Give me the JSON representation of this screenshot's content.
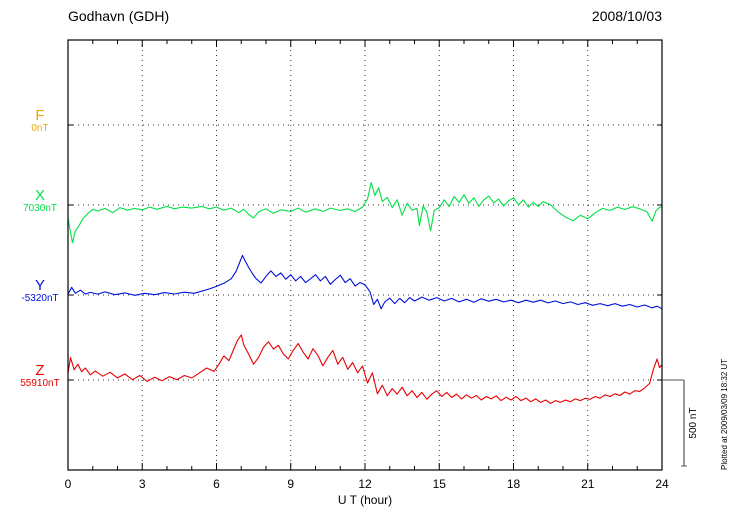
{
  "chart_data": {
    "type": "line",
    "title": "Godhavn (GDH)",
    "date": "2008/10/03",
    "xlabel": "U T (hour)",
    "x_range": [
      0,
      24
    ],
    "x_ticks": [
      0,
      3,
      6,
      9,
      12,
      15,
      18,
      21,
      24
    ],
    "grid": "dotted",
    "plotted_at": "Plotted at 2009/03/09 18:32 UT",
    "scale_bar": {
      "label": "500 nT",
      "nT": 500
    },
    "value_unit": "nT offset from component reference level",
    "series": [
      {
        "name": "F",
        "ref_label": "0nT",
        "baseline_nT": 0,
        "color": "#efa500",
        "points": []
      },
      {
        "name": "X",
        "ref_label": "7030nT",
        "baseline_nT": 7030,
        "color": "#00e047",
        "points": [
          [
            0,
            -75
          ],
          [
            0.1,
            -160
          ],
          [
            0.18,
            -220
          ],
          [
            0.3,
            -150
          ],
          [
            0.45,
            -120
          ],
          [
            0.6,
            -80
          ],
          [
            0.8,
            -50
          ],
          [
            1,
            -25
          ],
          [
            1.2,
            -35
          ],
          [
            1.5,
            -20
          ],
          [
            1.8,
            -45
          ],
          [
            2.1,
            -15
          ],
          [
            2.4,
            -30
          ],
          [
            2.7,
            -20
          ],
          [
            3,
            -28
          ],
          [
            3.3,
            -12
          ],
          [
            3.6,
            -25
          ],
          [
            4,
            -8
          ],
          [
            4.3,
            -22
          ],
          [
            4.6,
            -12
          ],
          [
            5,
            -18
          ],
          [
            5.4,
            -8
          ],
          [
            5.7,
            -22
          ],
          [
            6,
            -12
          ],
          [
            6.3,
            -30
          ],
          [
            6.6,
            -18
          ],
          [
            6.9,
            -45
          ],
          [
            7.1,
            -25
          ],
          [
            7.3,
            -55
          ],
          [
            7.5,
            -75
          ],
          [
            7.7,
            -40
          ],
          [
            8,
            -22
          ],
          [
            8.3,
            -48
          ],
          [
            8.6,
            -28
          ],
          [
            9,
            -38
          ],
          [
            9.3,
            -18
          ],
          [
            9.6,
            -42
          ],
          [
            10,
            -22
          ],
          [
            10.3,
            -38
          ],
          [
            10.6,
            -18
          ],
          [
            11,
            -32
          ],
          [
            11.3,
            -22
          ],
          [
            11.6,
            -38
          ],
          [
            11.9,
            -12
          ],
          [
            12.1,
            35
          ],
          [
            12.25,
            130
          ],
          [
            12.4,
            55
          ],
          [
            12.55,
            100
          ],
          [
            12.7,
            20
          ],
          [
            12.9,
            45
          ],
          [
            13.1,
            -15
          ],
          [
            13.3,
            30
          ],
          [
            13.5,
            -60
          ],
          [
            13.7,
            10
          ],
          [
            13.9,
            -30
          ],
          [
            14.1,
            -20
          ],
          [
            14.2,
            -120
          ],
          [
            14.35,
            -5
          ],
          [
            14.5,
            -45
          ],
          [
            14.65,
            -150
          ],
          [
            14.8,
            -30
          ],
          [
            15,
            -15
          ],
          [
            15.2,
            30
          ],
          [
            15.4,
            -10
          ],
          [
            15.6,
            50
          ],
          [
            15.8,
            15
          ],
          [
            16,
            60
          ],
          [
            16.2,
            10
          ],
          [
            16.4,
            42
          ],
          [
            16.6,
            -8
          ],
          [
            16.8,
            30
          ],
          [
            17,
            52
          ],
          [
            17.2,
            12
          ],
          [
            17.4,
            35
          ],
          [
            17.6,
            -5
          ],
          [
            17.8,
            25
          ],
          [
            18,
            42
          ],
          [
            18.2,
            2
          ],
          [
            18.4,
            30
          ],
          [
            18.6,
            -12
          ],
          [
            18.8,
            15
          ],
          [
            19,
            -8
          ],
          [
            19.2,
            20
          ],
          [
            19.5,
            2
          ],
          [
            19.8,
            -40
          ],
          [
            20.1,
            -70
          ],
          [
            20.4,
            -92
          ],
          [
            20.7,
            -60
          ],
          [
            21,
            -80
          ],
          [
            21.3,
            -45
          ],
          [
            21.6,
            -20
          ],
          [
            21.9,
            -32
          ],
          [
            22.2,
            -12
          ],
          [
            22.5,
            -26
          ],
          [
            22.8,
            -10
          ],
          [
            23.1,
            -22
          ],
          [
            23.4,
            -40
          ],
          [
            23.6,
            -95
          ],
          [
            23.75,
            -35
          ],
          [
            23.9,
            -15
          ],
          [
            24,
            -8
          ]
        ]
      },
      {
        "name": "Y",
        "ref_label": "-5320nT",
        "baseline_nT": -5320,
        "color": "#0010dd",
        "points": [
          [
            0,
            5
          ],
          [
            0.15,
            45
          ],
          [
            0.3,
            10
          ],
          [
            0.5,
            28
          ],
          [
            0.7,
            5
          ],
          [
            0.9,
            15
          ],
          [
            1.2,
            5
          ],
          [
            1.5,
            18
          ],
          [
            1.9,
            2
          ],
          [
            2.3,
            12
          ],
          [
            2.7,
            -2
          ],
          [
            3.1,
            10
          ],
          [
            3.5,
            2
          ],
          [
            3.9,
            14
          ],
          [
            4.3,
            6
          ],
          [
            4.7,
            16
          ],
          [
            5.1,
            10
          ],
          [
            5.4,
            22
          ],
          [
            5.7,
            35
          ],
          [
            6,
            50
          ],
          [
            6.3,
            68
          ],
          [
            6.6,
            95
          ],
          [
            6.8,
            140
          ],
          [
            6.95,
            195
          ],
          [
            7.05,
            230
          ],
          [
            7.15,
            200
          ],
          [
            7.3,
            160
          ],
          [
            7.45,
            125
          ],
          [
            7.6,
            95
          ],
          [
            7.8,
            70
          ],
          [
            8,
            108
          ],
          [
            8.2,
            140
          ],
          [
            8.4,
            108
          ],
          [
            8.6,
            128
          ],
          [
            8.8,
            92
          ],
          [
            9,
            118
          ],
          [
            9.2,
            82
          ],
          [
            9.4,
            108
          ],
          [
            9.6,
            72
          ],
          [
            9.8,
            95
          ],
          [
            10,
            118
          ],
          [
            10.2,
            82
          ],
          [
            10.4,
            108
          ],
          [
            10.6,
            62
          ],
          [
            10.8,
            90
          ],
          [
            11,
            115
          ],
          [
            11.2,
            72
          ],
          [
            11.4,
            95
          ],
          [
            11.6,
            52
          ],
          [
            11.8,
            72
          ],
          [
            12,
            60
          ],
          [
            12.2,
            20
          ],
          [
            12.35,
            -55
          ],
          [
            12.5,
            -25
          ],
          [
            12.65,
            -80
          ],
          [
            12.8,
            -40
          ],
          [
            13,
            -18
          ],
          [
            13.2,
            -50
          ],
          [
            13.4,
            -20
          ],
          [
            13.6,
            -45
          ],
          [
            13.8,
            -15
          ],
          [
            14,
            -35
          ],
          [
            14.3,
            -12
          ],
          [
            14.6,
            -30
          ],
          [
            14.9,
            -15
          ],
          [
            15.2,
            -35
          ],
          [
            15.5,
            -20
          ],
          [
            15.8,
            -40
          ],
          [
            16.1,
            -25
          ],
          [
            16.4,
            -42
          ],
          [
            16.7,
            -22
          ],
          [
            17,
            -36
          ],
          [
            17.3,
            -25
          ],
          [
            17.6,
            -40
          ],
          [
            17.9,
            -30
          ],
          [
            18.2,
            -45
          ],
          [
            18.5,
            -30
          ],
          [
            18.8,
            -42
          ],
          [
            19.1,
            -30
          ],
          [
            19.4,
            -46
          ],
          [
            19.7,
            -35
          ],
          [
            20,
            -50
          ],
          [
            20.3,
            -40
          ],
          [
            20.6,
            -55
          ],
          [
            20.9,
            -45
          ],
          [
            21.2,
            -60
          ],
          [
            21.5,
            -50
          ],
          [
            21.8,
            -62
          ],
          [
            22.1,
            -50
          ],
          [
            22.4,
            -65
          ],
          [
            22.7,
            -55
          ],
          [
            23,
            -70
          ],
          [
            23.3,
            -58
          ],
          [
            23.6,
            -75
          ],
          [
            23.8,
            -65
          ],
          [
            24,
            -80
          ]
        ]
      },
      {
        "name": "Z",
        "ref_label": "55910nT",
        "baseline_nT": 55910,
        "color": "#e60000",
        "points": [
          [
            0,
            40
          ],
          [
            0.1,
            130
          ],
          [
            0.25,
            60
          ],
          [
            0.4,
            92
          ],
          [
            0.55,
            48
          ],
          [
            0.7,
            70
          ],
          [
            0.9,
            30
          ],
          [
            1.1,
            52
          ],
          [
            1.4,
            22
          ],
          [
            1.7,
            45
          ],
          [
            2,
            12
          ],
          [
            2.3,
            35
          ],
          [
            2.6,
            2
          ],
          [
            2.9,
            26
          ],
          [
            3.2,
            -8
          ],
          [
            3.5,
            16
          ],
          [
            3.8,
            -4
          ],
          [
            4.1,
            20
          ],
          [
            4.4,
            2
          ],
          [
            4.7,
            26
          ],
          [
            5,
            12
          ],
          [
            5.3,
            40
          ],
          [
            5.6,
            70
          ],
          [
            5.9,
            50
          ],
          [
            6.1,
            92
          ],
          [
            6.3,
            140
          ],
          [
            6.5,
            112
          ],
          [
            6.7,
            180
          ],
          [
            6.85,
            230
          ],
          [
            7,
            262
          ],
          [
            7.1,
            205
          ],
          [
            7.3,
            150
          ],
          [
            7.5,
            92
          ],
          [
            7.7,
            132
          ],
          [
            7.9,
            190
          ],
          [
            8.1,
            222
          ],
          [
            8.3,
            180
          ],
          [
            8.5,
            202
          ],
          [
            8.7,
            152
          ],
          [
            8.9,
            122
          ],
          [
            9.1,
            172
          ],
          [
            9.3,
            212
          ],
          [
            9.5,
            162
          ],
          [
            9.7,
            122
          ],
          [
            9.9,
            182
          ],
          [
            10.1,
            142
          ],
          [
            10.3,
            82
          ],
          [
            10.5,
            132
          ],
          [
            10.7,
            172
          ],
          [
            10.9,
            92
          ],
          [
            11.1,
            132
          ],
          [
            11.3,
            62
          ],
          [
            11.5,
            102
          ],
          [
            11.7,
            42
          ],
          [
            11.9,
            82
          ],
          [
            12.1,
            -18
          ],
          [
            12.3,
            42
          ],
          [
            12.5,
            -80
          ],
          [
            12.7,
            -30
          ],
          [
            12.9,
            -92
          ],
          [
            13.1,
            -50
          ],
          [
            13.3,
            -82
          ],
          [
            13.5,
            -42
          ],
          [
            13.7,
            -92
          ],
          [
            13.9,
            -62
          ],
          [
            14.1,
            -102
          ],
          [
            14.3,
            -72
          ],
          [
            14.5,
            -112
          ],
          [
            14.7,
            -82
          ],
          [
            14.9,
            -62
          ],
          [
            15.1,
            -96
          ],
          [
            15.3,
            -72
          ],
          [
            15.5,
            -102
          ],
          [
            15.7,
            -82
          ],
          [
            15.9,
            -110
          ],
          [
            16.1,
            -86
          ],
          [
            16.3,
            -106
          ],
          [
            16.5,
            -90
          ],
          [
            16.7,
            -116
          ],
          [
            16.9,
            -96
          ],
          [
            17.1,
            -110
          ],
          [
            17.3,
            -92
          ],
          [
            17.5,
            -120
          ],
          [
            17.7,
            -100
          ],
          [
            17.9,
            -116
          ],
          [
            18.1,
            -96
          ],
          [
            18.3,
            -120
          ],
          [
            18.5,
            -105
          ],
          [
            18.7,
            -126
          ],
          [
            18.9,
            -110
          ],
          [
            19.1,
            -130
          ],
          [
            19.3,
            -116
          ],
          [
            19.5,
            -136
          ],
          [
            19.7,
            -120
          ],
          [
            19.9,
            -130
          ],
          [
            20.1,
            -116
          ],
          [
            20.3,
            -126
          ],
          [
            20.5,
            -110
          ],
          [
            20.7,
            -120
          ],
          [
            20.9,
            -106
          ],
          [
            21.1,
            -112
          ],
          [
            21.3,
            -96
          ],
          [
            21.5,
            -106
          ],
          [
            21.7,
            -86
          ],
          [
            21.9,
            -96
          ],
          [
            22.1,
            -80
          ],
          [
            22.3,
            -90
          ],
          [
            22.5,
            -70
          ],
          [
            22.7,
            -82
          ],
          [
            22.9,
            -62
          ],
          [
            23.1,
            -66
          ],
          [
            23.3,
            -46
          ],
          [
            23.5,
            -20
          ],
          [
            23.65,
            60
          ],
          [
            23.8,
            122
          ],
          [
            23.9,
            72
          ],
          [
            24,
            90
          ]
        ]
      }
    ]
  }
}
